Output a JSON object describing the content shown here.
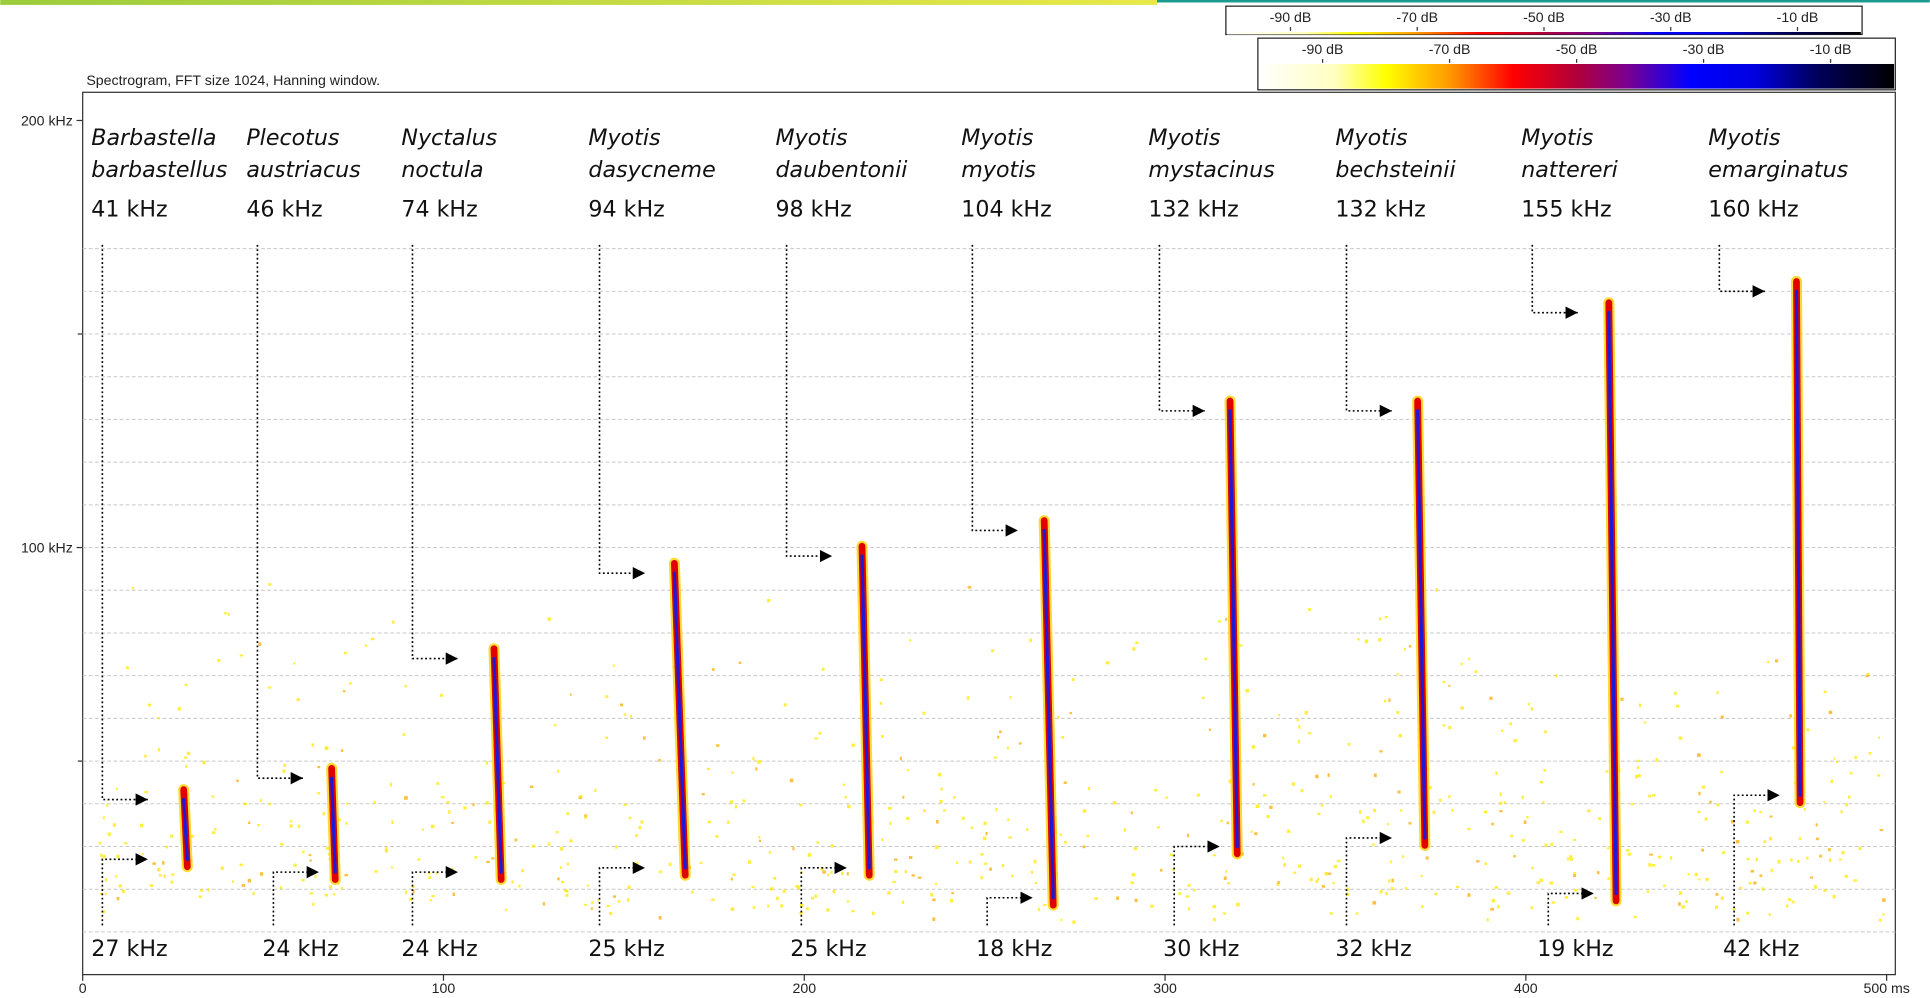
{
  "chart_data": {
    "type": "spectrogram",
    "title": "Spectrogram, FFT size 1024, Hanning window.",
    "xlim": [
      0,
      502.4
    ],
    "xticks": [
      0,
      100,
      200,
      300,
      400,
      {
        "value": 500,
        "label": "500 ms"
      }
    ],
    "ylim": [
      0,
      206.6
    ],
    "yticks": [
      {
        "value": 100,
        "label": "100 kHz"
      },
      {
        "value": 200,
        "label": "200 kHz"
      }
    ],
    "yminorticks": [
      50,
      150
    ],
    "grid": true,
    "gridlines": [
      10,
      20,
      30,
      40,
      50,
      60,
      70,
      80,
      90,
      100,
      110,
      120,
      130,
      140,
      150,
      160,
      170
    ],
    "clim": [
      -100,
      0
    ],
    "colorbars": [
      {
        "ticks": [
          {
            "value": -90,
            "label": "-90 dB"
          },
          {
            "value": -70,
            "label": "-70 dB"
          },
          {
            "value": -50,
            "label": "-50 dB"
          },
          {
            "value": -30,
            "label": "-30 dB"
          },
          {
            "value": -10,
            "label": "-10 dB"
          }
        ]
      },
      {
        "ticks": [
          {
            "value": -90,
            "label": "-90 dB"
          },
          {
            "value": -70,
            "label": "-70 dB"
          },
          {
            "value": -50,
            "label": "-50 dB"
          },
          {
            "value": -30,
            "label": "-30 dB"
          },
          {
            "value": -10,
            "label": "-10 dB"
          }
        ]
      }
    ],
    "calls": [
      {
        "name": [
          "Barbastella",
          "barbastellus"
        ],
        "x": [
          28,
          29
        ],
        "values": [
          41,
          27
        ],
        "value_labels": [
          "41 kHz",
          "27 kHz"
        ]
      },
      {
        "name": [
          "Plecotus",
          "austriacus"
        ],
        "x": [
          69,
          70
        ],
        "values": [
          46,
          24
        ],
        "value_labels": [
          "46 kHz",
          "24 kHz"
        ]
      },
      {
        "name": [
          "Nyctalus",
          "noctula"
        ],
        "x": [
          114,
          116
        ],
        "values": [
          74,
          24
        ],
        "value_labels": [
          "74 kHz",
          "24 kHz"
        ]
      },
      {
        "name": [
          "Myotis",
          "dasycneme"
        ],
        "x": [
          164,
          167
        ],
        "values": [
          94,
          25
        ],
        "value_labels": [
          "94 kHz",
          "25 kHz"
        ]
      },
      {
        "name": [
          "Myotis",
          "daubentonii"
        ],
        "x": [
          216,
          218
        ],
        "values": [
          98,
          25
        ],
        "value_labels": [
          "98 kHz",
          "25 kHz"
        ]
      },
      {
        "name": [
          "Myotis",
          "myotis"
        ],
        "x": [
          266.5,
          269
        ],
        "values": [
          104,
          18
        ],
        "value_labels": [
          "104 kHz",
          "18 kHz"
        ]
      },
      {
        "name": [
          "Myotis",
          "mystacinus"
        ],
        "x": [
          318,
          320
        ],
        "values": [
          132,
          30
        ],
        "value_labels": [
          "132 kHz",
          "30 kHz"
        ]
      },
      {
        "name": [
          "Myotis",
          "bechsteinii"
        ],
        "x": [
          370,
          372
        ],
        "values": [
          132,
          32
        ],
        "value_labels": [
          "132 kHz",
          "32 kHz"
        ]
      },
      {
        "name": [
          "Myotis",
          "nattereri"
        ],
        "x": [
          423,
          425
        ],
        "values": [
          155,
          19
        ],
        "value_labels": [
          "155 kHz",
          "19 kHz"
        ]
      },
      {
        "name": [
          "Myotis",
          "emarginatus"
        ],
        "x": [
          475,
          476
        ],
        "values": [
          160,
          42
        ],
        "value_labels": [
          "160 kHz",
          "42 kHz"
        ]
      }
    ]
  }
}
